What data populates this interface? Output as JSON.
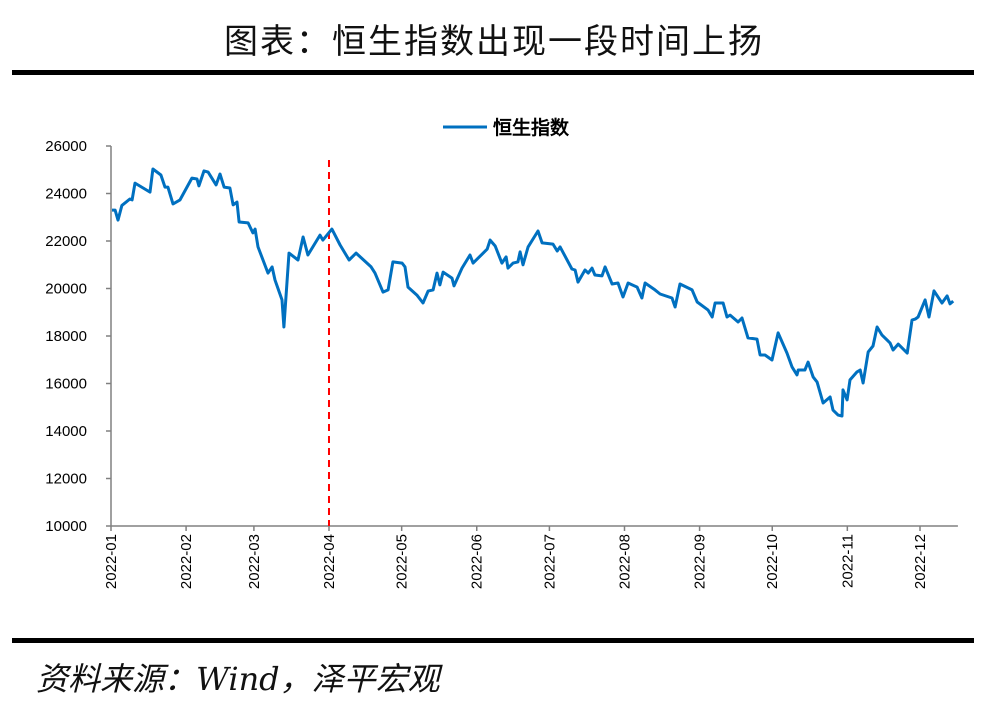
{
  "title": "图表：恒生指数出现一段时间上扬",
  "source": "资料来源：Wind，泽平宏观",
  "colors": {
    "series": "#0070C0",
    "marker": "#FF0000",
    "axis": "#808080"
  },
  "chart_data": {
    "type": "line",
    "title": "",
    "xlabel": "",
    "ylabel": "",
    "x_unit": "day of year 2022 (0 = 2022-01-01)",
    "ylim": [
      10000,
      26000
    ],
    "yticks": [
      10000,
      12000,
      14000,
      16000,
      18000,
      20000,
      22000,
      24000,
      26000
    ],
    "xticks": [
      {
        "label": "2022-01",
        "day": 0
      },
      {
        "label": "2022-02",
        "day": 31
      },
      {
        "label": "2022-03",
        "day": 59
      },
      {
        "label": "2022-04",
        "day": 90
      },
      {
        "label": "2022-05",
        "day": 120
      },
      {
        "label": "2022-06",
        "day": 151
      },
      {
        "label": "2022-07",
        "day": 181
      },
      {
        "label": "2022-08",
        "day": 212
      },
      {
        "label": "2022-09",
        "day": 243
      },
      {
        "label": "2022-10",
        "day": 273
      },
      {
        "label": "2022-11",
        "day": 304
      },
      {
        "label": "2022-12",
        "day": 334
      }
    ],
    "xlim": [
      0,
      348
    ],
    "grid": false,
    "legend": "top-center",
    "vline": {
      "day": 90,
      "label": "2022-04"
    },
    "series": [
      {
        "name": "恒生指数",
        "points": [
          [
            0.4,
            23300
          ],
          [
            1.7,
            23300
          ],
          [
            2.9,
            22880
          ],
          [
            4.5,
            23500
          ],
          [
            7.8,
            23770
          ],
          [
            8.7,
            23730
          ],
          [
            9.9,
            24440
          ],
          [
            16.1,
            24060
          ],
          [
            17.3,
            25030
          ],
          [
            20.6,
            24780
          ],
          [
            22.3,
            24270
          ],
          [
            23.5,
            24270
          ],
          [
            25.6,
            23560
          ],
          [
            28.5,
            23730
          ],
          [
            33.4,
            24650
          ],
          [
            35.5,
            24610
          ],
          [
            36.3,
            24320
          ],
          [
            38.4,
            24950
          ],
          [
            40.1,
            24900
          ],
          [
            43.4,
            24360
          ],
          [
            45,
            24820
          ],
          [
            46.7,
            24270
          ],
          [
            49.1,
            24230
          ],
          [
            50.4,
            23520
          ],
          [
            52,
            23640
          ],
          [
            52.9,
            22800
          ],
          [
            56.6,
            22760
          ],
          [
            58.6,
            22340
          ],
          [
            59.5,
            22500
          ],
          [
            60.7,
            21750
          ],
          [
            64.8,
            20650
          ],
          [
            66.5,
            20910
          ],
          [
            67.7,
            20360
          ],
          [
            70.6,
            19520
          ],
          [
            71.4,
            18380
          ],
          [
            73.5,
            21490
          ],
          [
            77.2,
            21200
          ],
          [
            79.3,
            22170
          ],
          [
            81.3,
            21410
          ],
          [
            86.3,
            22250
          ],
          [
            87.5,
            22040
          ],
          [
            91.2,
            22500
          ],
          [
            94.6,
            21830
          ],
          [
            98.3,
            21200
          ],
          [
            101.2,
            21490
          ],
          [
            107.4,
            20910
          ],
          [
            109,
            20650
          ],
          [
            112.3,
            19850
          ],
          [
            114.4,
            19940
          ],
          [
            116.4,
            21120
          ],
          [
            120.2,
            21070
          ],
          [
            121.4,
            20910
          ],
          [
            122.6,
            20060
          ],
          [
            126.3,
            19720
          ],
          [
            128.8,
            19390
          ],
          [
            130.9,
            19890
          ],
          [
            133,
            19940
          ],
          [
            134.6,
            20650
          ],
          [
            135.8,
            20150
          ],
          [
            137.1,
            20690
          ],
          [
            140.8,
            20440
          ],
          [
            141.6,
            20110
          ],
          [
            144.9,
            20860
          ],
          [
            148.2,
            21410
          ],
          [
            149.5,
            21070
          ],
          [
            155.3,
            21660
          ],
          [
            156.5,
            22040
          ],
          [
            158.6,
            21790
          ],
          [
            161.4,
            21070
          ],
          [
            163.1,
            21330
          ],
          [
            163.9,
            20860
          ],
          [
            166,
            21070
          ],
          [
            168,
            21120
          ],
          [
            168.9,
            21540
          ],
          [
            170.1,
            21000
          ],
          [
            172.2,
            21750
          ],
          [
            176.3,
            22420
          ],
          [
            178,
            21920
          ],
          [
            182.5,
            21870
          ],
          [
            184.2,
            21580
          ],
          [
            185.4,
            21750
          ],
          [
            190.3,
            20820
          ],
          [
            191.6,
            20780
          ],
          [
            192.8,
            20270
          ],
          [
            195.7,
            20780
          ],
          [
            197,
            20650
          ],
          [
            198.6,
            20860
          ],
          [
            199.8,
            20570
          ],
          [
            202.7,
            20530
          ],
          [
            204,
            20910
          ],
          [
            206.9,
            20190
          ],
          [
            209.3,
            20230
          ],
          [
            211.4,
            19640
          ],
          [
            213.5,
            20230
          ],
          [
            217.2,
            20060
          ],
          [
            219.2,
            19600
          ],
          [
            220.5,
            20230
          ],
          [
            224.6,
            19940
          ],
          [
            226.7,
            19770
          ],
          [
            231.6,
            19600
          ],
          [
            232.9,
            19220
          ],
          [
            234.9,
            20190
          ],
          [
            239.9,
            19940
          ],
          [
            242,
            19430
          ],
          [
            246.5,
            19090
          ],
          [
            248.2,
            18800
          ],
          [
            249.4,
            19390
          ],
          [
            252.7,
            19390
          ],
          [
            254.3,
            18800
          ],
          [
            255.6,
            18880
          ],
          [
            258.9,
            18590
          ],
          [
            260.5,
            18760
          ],
          [
            263,
            17920
          ],
          [
            266.7,
            17870
          ],
          [
            268,
            17200
          ],
          [
            270,
            17200
          ],
          [
            272.9,
            16990
          ],
          [
            275.4,
            18130
          ],
          [
            279.1,
            17280
          ],
          [
            281.2,
            16690
          ],
          [
            283.2,
            16360
          ],
          [
            283.7,
            16570
          ],
          [
            286.5,
            16570
          ],
          [
            287.8,
            16900
          ],
          [
            289.9,
            16270
          ],
          [
            291.5,
            16060
          ],
          [
            294,
            15180
          ],
          [
            296.9,
            15430
          ],
          [
            298.1,
            14880
          ],
          [
            300.2,
            14670
          ],
          [
            301.8,
            14630
          ],
          [
            302.2,
            15730
          ],
          [
            303.9,
            15310
          ],
          [
            305.1,
            16150
          ],
          [
            308,
            16490
          ],
          [
            309.3,
            16570
          ],
          [
            310.5,
            16020
          ],
          [
            312.6,
            17330
          ],
          [
            314.6,
            17580
          ],
          [
            316.3,
            18380
          ],
          [
            318.3,
            18040
          ],
          [
            321.6,
            17710
          ],
          [
            322.9,
            17410
          ],
          [
            325,
            17660
          ],
          [
            328.7,
            17280
          ],
          [
            330.7,
            18670
          ],
          [
            332,
            18710
          ],
          [
            333.2,
            18800
          ],
          [
            336.1,
            19520
          ],
          [
            337.7,
            18800
          ],
          [
            339.8,
            19900
          ],
          [
            343.1,
            19390
          ],
          [
            345.2,
            19690
          ],
          [
            346.4,
            19350
          ],
          [
            347.7,
            19470
          ]
        ]
      }
    ]
  }
}
